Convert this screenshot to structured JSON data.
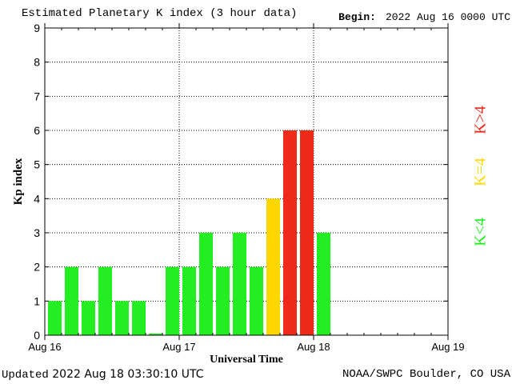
{
  "header": {
    "title": "Estimated Planetary K index (3 hour data)",
    "begin_label": "Begin:",
    "begin_value": "2022 Aug 16 0000 UTC"
  },
  "footer": {
    "updated_label": "Updated",
    "updated_value": "2022 Aug 18 03:30:10 UTC",
    "credit": "NOAA/SWPC Boulder, CO USA"
  },
  "legend": {
    "high": "K>4",
    "equal": "K=4",
    "low": "K<4"
  },
  "colors": {
    "low": "#22ee22",
    "equal": "#ffd700",
    "high": "#ee2a1a"
  },
  "chart_data": {
    "type": "bar",
    "title": "Estimated Planetary K index (3 hour data)",
    "xlabel": "Universal Time",
    "ylabel": "Kp index",
    "ylim": [
      0,
      9
    ],
    "yticks": [
      0,
      1,
      2,
      3,
      4,
      5,
      6,
      7,
      8,
      9
    ],
    "xticks": [
      "Aug 16",
      "Aug 17",
      "Aug 18",
      "Aug 19"
    ],
    "bins_per_day": 8,
    "total_bins": 24,
    "grid": true,
    "values": [
      1,
      2,
      1,
      2,
      1,
      1,
      0.05,
      2,
      2,
      3,
      2,
      3,
      2,
      4,
      6,
      6,
      3
    ]
  }
}
